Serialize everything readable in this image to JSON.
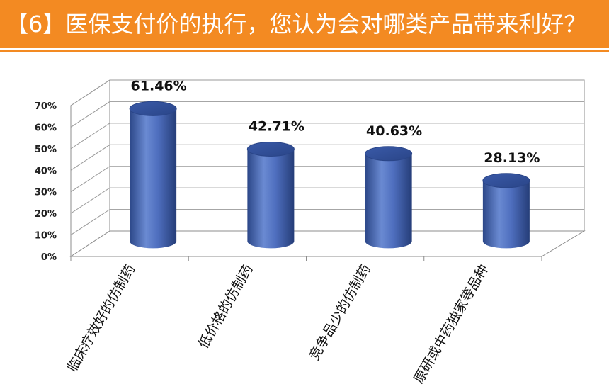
{
  "header": {
    "title": "【6】医保支付价的执行，您认为会对哪类产品带来利好？"
  },
  "colors": {
    "header_bg": "#f38a22",
    "bar": "#4f6fbf"
  },
  "chart_data": {
    "type": "bar",
    "title": "",
    "xlabel": "",
    "ylabel": "",
    "categories": [
      "临床疗效好的仿制药",
      "低价格的仿制药",
      "竞争品少的仿制药",
      "原研或中药独家等品种"
    ],
    "values": [
      61.46,
      42.71,
      40.63,
      28.13
    ],
    "data_labels": [
      "61.46%",
      "42.71%",
      "40.63%",
      "28.13%"
    ],
    "ylim": [
      0,
      70
    ],
    "yticks": [
      "0%",
      "10%",
      "20%",
      "30%",
      "40%",
      "50%",
      "60%",
      "70%"
    ],
    "grid": true,
    "legend": "none",
    "style": "3d-cylinder"
  }
}
